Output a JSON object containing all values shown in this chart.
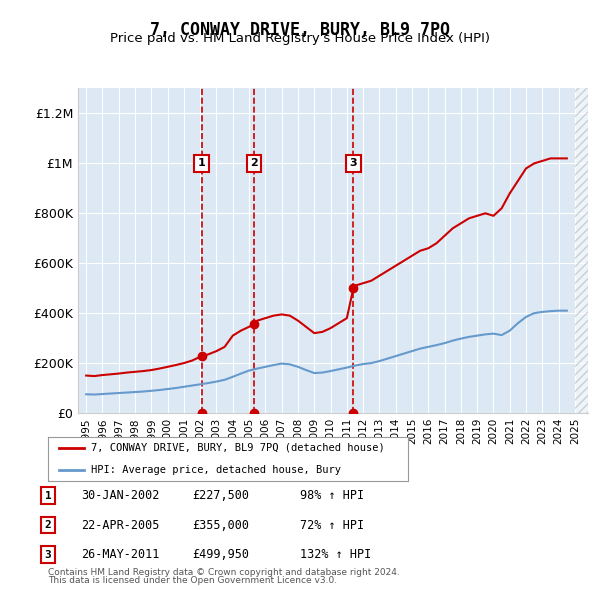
{
  "title": "7, CONWAY DRIVE, BURY, BL9 7PQ",
  "subtitle": "Price paid vs. HM Land Registry's House Price Index (HPI)",
  "footer1": "Contains HM Land Registry data © Crown copyright and database right 2024.",
  "footer2": "This data is licensed under the Open Government Licence v3.0.",
  "legend_red": "7, CONWAY DRIVE, BURY, BL9 7PQ (detached house)",
  "legend_blue": "HPI: Average price, detached house, Bury",
  "transactions": [
    {
      "num": 1,
      "date": "30-JAN-2002",
      "price": "£227,500",
      "hpi": "98% ↑ HPI",
      "year": 2002.08
    },
    {
      "num": 2,
      "date": "22-APR-2005",
      "price": "£355,000",
      "hpi": "72% ↑ HPI",
      "year": 2005.31
    },
    {
      "num": 3,
      "date": "26-MAY-2011",
      "price": "£499,950",
      "hpi": "132% ↑ HPI",
      "year": 2011.4
    }
  ],
  "xlim": [
    1994.5,
    2025.8
  ],
  "ylim": [
    0,
    1300000
  ],
  "yticks": [
    0,
    200000,
    400000,
    600000,
    800000,
    1000000,
    1200000
  ],
  "ytick_labels": [
    "£0",
    "£200K",
    "£400K",
    "£600K",
    "£800K",
    "£1M",
    "£1.2M"
  ],
  "xticks": [
    1995,
    1996,
    1997,
    1998,
    1999,
    2000,
    2001,
    2002,
    2003,
    2004,
    2005,
    2006,
    2007,
    2008,
    2009,
    2010,
    2011,
    2012,
    2013,
    2014,
    2015,
    2016,
    2017,
    2018,
    2019,
    2020,
    2021,
    2022,
    2023,
    2024,
    2025
  ],
  "bg_color": "#dce9f5",
  "plot_bg": "#dce9f5",
  "grid_color": "#ffffff",
  "red_color": "#cc0000",
  "blue_color": "#6699cc",
  "hpi_red_x": [
    1995.0,
    1995.5,
    1996.0,
    1996.5,
    1997.0,
    1997.5,
    1998.0,
    1998.5,
    1999.0,
    1999.5,
    2000.0,
    2000.5,
    2001.0,
    2001.5,
    2002.08,
    2002.5,
    2003.0,
    2003.5,
    2004.0,
    2004.5,
    2005.31,
    2005.5,
    2006.0,
    2006.5,
    2007.0,
    2007.5,
    2008.0,
    2008.5,
    2009.0,
    2009.5,
    2010.0,
    2010.5,
    2011.0,
    2011.4,
    2011.5,
    2012.0,
    2012.5,
    2013.0,
    2013.5,
    2014.0,
    2014.5,
    2015.0,
    2015.5,
    2016.0,
    2016.5,
    2017.0,
    2017.5,
    2018.0,
    2018.5,
    2019.0,
    2019.5,
    2020.0,
    2020.5,
    2021.0,
    2021.5,
    2022.0,
    2022.5,
    2023.0,
    2023.5,
    2024.0,
    2024.5
  ],
  "hpi_red_y": [
    150000,
    148000,
    152000,
    155000,
    158000,
    162000,
    165000,
    168000,
    172000,
    178000,
    185000,
    192000,
    200000,
    210000,
    227500,
    235000,
    248000,
    265000,
    310000,
    330000,
    355000,
    370000,
    380000,
    390000,
    395000,
    390000,
    370000,
    345000,
    320000,
    325000,
    340000,
    360000,
    380000,
    499950,
    510000,
    520000,
    530000,
    550000,
    570000,
    590000,
    610000,
    630000,
    650000,
    660000,
    680000,
    710000,
    740000,
    760000,
    780000,
    790000,
    800000,
    790000,
    820000,
    880000,
    930000,
    980000,
    1000000,
    1010000,
    1020000,
    1020000,
    1020000
  ],
  "hpi_blue_x": [
    1995.0,
    1995.5,
    1996.0,
    1996.5,
    1997.0,
    1997.5,
    1998.0,
    1998.5,
    1999.0,
    1999.5,
    2000.0,
    2000.5,
    2001.0,
    2001.5,
    2002.0,
    2002.5,
    2003.0,
    2003.5,
    2004.0,
    2004.5,
    2005.0,
    2005.5,
    2006.0,
    2006.5,
    2007.0,
    2007.5,
    2008.0,
    2008.5,
    2009.0,
    2009.5,
    2010.0,
    2010.5,
    2011.0,
    2011.5,
    2012.0,
    2012.5,
    2013.0,
    2013.5,
    2014.0,
    2014.5,
    2015.0,
    2015.5,
    2016.0,
    2016.5,
    2017.0,
    2017.5,
    2018.0,
    2018.5,
    2019.0,
    2019.5,
    2020.0,
    2020.5,
    2021.0,
    2021.5,
    2022.0,
    2022.5,
    2023.0,
    2023.5,
    2024.0,
    2024.5
  ],
  "hpi_blue_y": [
    75000,
    74000,
    76000,
    78000,
    80000,
    82000,
    84000,
    86000,
    89000,
    92000,
    96000,
    100000,
    105000,
    110000,
    115000,
    120000,
    126000,
    133000,
    145000,
    158000,
    170000,
    178000,
    185000,
    192000,
    198000,
    195000,
    185000,
    172000,
    160000,
    162000,
    168000,
    175000,
    182000,
    190000,
    196000,
    200000,
    208000,
    218000,
    228000,
    238000,
    248000,
    258000,
    265000,
    272000,
    280000,
    290000,
    298000,
    305000,
    310000,
    315000,
    318000,
    312000,
    330000,
    360000,
    385000,
    400000,
    405000,
    408000,
    410000,
    410000
  ]
}
